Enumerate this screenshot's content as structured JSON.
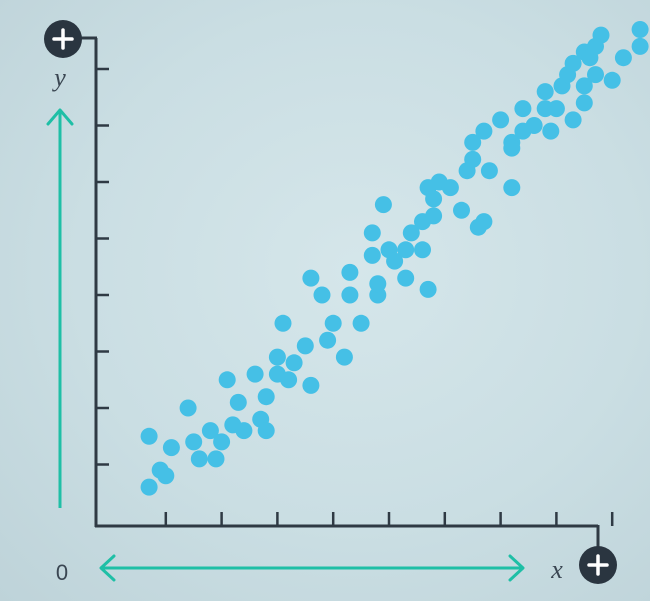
{
  "chart_data": {
    "type": "scatter",
    "title": "",
    "xlabel": "x",
    "ylabel": "y",
    "origin_label": "0",
    "xlim": [
      0,
      10
    ],
    "ylim": [
      0,
      9
    ],
    "x_ticks": [
      1,
      2,
      3,
      4,
      5,
      6,
      7,
      8,
      9
    ],
    "y_ticks": [
      1,
      2,
      3,
      4,
      5,
      6,
      7,
      8
    ],
    "grid": false,
    "legend": "none",
    "series": [
      {
        "points": [
          [
            0.7,
            1.5
          ],
          [
            0.9,
            0.9
          ],
          [
            1.1,
            1.3
          ],
          [
            0.7,
            0.6
          ],
          [
            1.0,
            0.8
          ],
          [
            1.4,
            2.0
          ],
          [
            1.5,
            1.4
          ],
          [
            1.6,
            1.1
          ],
          [
            1.8,
            1.6
          ],
          [
            1.9,
            1.1
          ],
          [
            2.0,
            1.4
          ],
          [
            2.1,
            2.5
          ],
          [
            2.2,
            1.7
          ],
          [
            2.3,
            2.1
          ],
          [
            2.4,
            1.6
          ],
          [
            2.6,
            2.6
          ],
          [
            2.7,
            1.8
          ],
          [
            2.8,
            1.6
          ],
          [
            2.8,
            2.2
          ],
          [
            3.0,
            2.9
          ],
          [
            3.0,
            2.6
          ],
          [
            3.1,
            3.5
          ],
          [
            3.2,
            2.5
          ],
          [
            3.3,
            2.8
          ],
          [
            3.5,
            3.1
          ],
          [
            3.6,
            2.4
          ],
          [
            3.8,
            4.0
          ],
          [
            3.6,
            4.3
          ],
          [
            3.9,
            3.2
          ],
          [
            4.0,
            3.5
          ],
          [
            4.2,
            2.9
          ],
          [
            4.3,
            4.0
          ],
          [
            4.3,
            4.4
          ],
          [
            4.5,
            3.5
          ],
          [
            4.7,
            4.7
          ],
          [
            4.7,
            5.1
          ],
          [
            4.8,
            4.0
          ],
          [
            4.8,
            4.2
          ],
          [
            4.9,
            5.6
          ],
          [
            5.0,
            4.8
          ],
          [
            5.1,
            4.6
          ],
          [
            5.3,
            4.8
          ],
          [
            5.3,
            4.3
          ],
          [
            5.4,
            5.1
          ],
          [
            5.6,
            5.3
          ],
          [
            5.7,
            5.9
          ],
          [
            5.6,
            4.8
          ],
          [
            5.7,
            4.1
          ],
          [
            5.8,
            5.4
          ],
          [
            5.8,
            5.7
          ],
          [
            5.9,
            6.0
          ],
          [
            6.1,
            5.9
          ],
          [
            6.3,
            5.5
          ],
          [
            6.4,
            6.2
          ],
          [
            6.5,
            6.4
          ],
          [
            6.5,
            6.7
          ],
          [
            6.7,
            6.9
          ],
          [
            6.7,
            5.3
          ],
          [
            6.6,
            5.2
          ],
          [
            6.8,
            6.2
          ],
          [
            7.0,
            7.1
          ],
          [
            7.2,
            6.7
          ],
          [
            7.2,
            5.9
          ],
          [
            7.2,
            6.6
          ],
          [
            7.4,
            7.3
          ],
          [
            7.4,
            6.9
          ],
          [
            7.6,
            7.0
          ],
          [
            7.8,
            7.6
          ],
          [
            7.8,
            7.3
          ],
          [
            7.9,
            6.9
          ],
          [
            8.0,
            7.3
          ],
          [
            8.1,
            7.7
          ],
          [
            8.2,
            7.9
          ],
          [
            8.3,
            8.1
          ],
          [
            8.5,
            7.7
          ],
          [
            8.5,
            7.4
          ],
          [
            8.5,
            8.3
          ],
          [
            8.6,
            8.2
          ],
          [
            8.7,
            7.9
          ],
          [
            8.8,
            8.6
          ],
          [
            9.0,
            7.8
          ],
          [
            9.2,
            8.2
          ],
          [
            9.5,
            8.7
          ],
          [
            9.5,
            8.4
          ],
          [
            8.7,
            8.4
          ],
          [
            8.3,
            7.1
          ]
        ]
      }
    ]
  },
  "colors": {
    "points": "#45c0e6",
    "axis": "#2f3a44",
    "arrow": "#1fbfa6",
    "badge": "#2a3540",
    "text": "#3a4652"
  },
  "icons": {
    "y_corner": "plus-icon",
    "x_corner": "plus-icon"
  }
}
